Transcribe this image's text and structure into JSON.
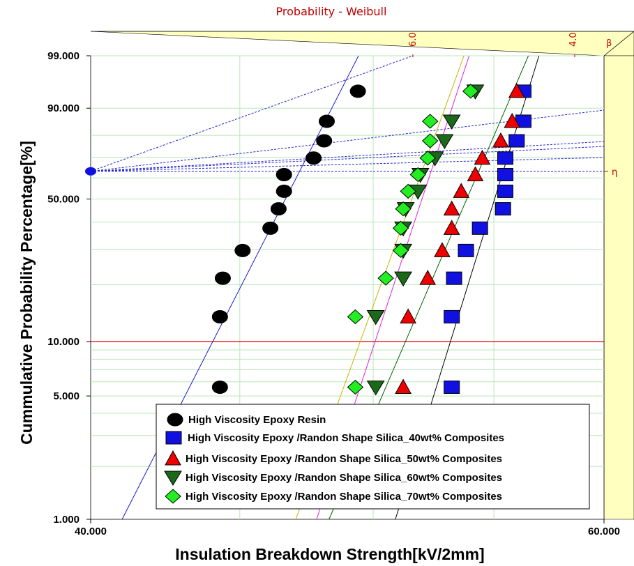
{
  "chart_data": {
    "type": "scatter",
    "title": "Probability - Weibull",
    "xlabel": "Insulation Breakdown Strength[kV/2mm]",
    "ylabel": "Cummulative Probability Percentage[%]",
    "xlim": [
      40.0,
      60.0
    ],
    "ylim": [
      1.0,
      99.0
    ],
    "x_scale": "log",
    "y_scale": "weibull",
    "x_tick_labels": [
      "40.000",
      "60.000"
    ],
    "y_tick_labels": [
      "99.000",
      "90.000",
      "50.000",
      "10.000",
      "5.000",
      "1.000"
    ],
    "y_ticks": [
      99.0,
      90.0,
      50.0,
      10.0,
      5.0,
      1.0
    ],
    "beta_scale_labels": [
      "6.0",
      "4.0",
      "β"
    ],
    "eta_label": "η",
    "grid": true,
    "legend_placement": "bottom-center",
    "colors": {
      "plot_bg": "#ffffff",
      "frame_bg": "#ffffc0",
      "grid": "#b8e8b8",
      "ref_line": "#e00000",
      "beta_lines": "#2222cc",
      "title": "#c00000"
    },
    "series": [
      {
        "name": "High Viscosity Epoxy Resin",
        "marker": "circle",
        "color": "#000000",
        "fit_color": "#1a1acc",
        "x": [
          44.3,
          44.3,
          44.4,
          45.1,
          46.1,
          46.4,
          46.6,
          46.6,
          47.7,
          48.1,
          48.2,
          49.4
        ],
        "y": [
          5.6,
          13.6,
          21.6,
          29.6,
          37.6,
          45.6,
          53.6,
          61.6,
          69.6,
          77.6,
          85.6,
          94.4
        ]
      },
      {
        "name": "High Viscosity Epoxy /Randon Shape Silica_40wt% Composites",
        "marker": "square",
        "color": "#1010e0",
        "fit_color": "#000000",
        "x": [
          53.2,
          53.2,
          53.3,
          53.8,
          54.4,
          55.4,
          55.5,
          55.5,
          55.5,
          56.0,
          56.3,
          56.3
        ],
        "y": [
          5.6,
          13.6,
          21.6,
          29.6,
          37.6,
          45.6,
          53.6,
          61.6,
          69.6,
          77.6,
          85.6,
          94.4
        ]
      },
      {
        "name": "High Viscosity Epoxy /Randon Shape Silica_50wt% Composites",
        "marker": "triangle-up",
        "color": "#ee0000",
        "fit_color": "#006000",
        "x": [
          51.2,
          51.4,
          52.2,
          52.8,
          53.2,
          53.2,
          53.6,
          54.2,
          54.5,
          55.3,
          55.8,
          56.0
        ],
        "y": [
          5.6,
          13.6,
          21.6,
          29.6,
          37.6,
          45.6,
          53.6,
          61.6,
          69.6,
          77.6,
          85.6,
          94.4
        ]
      },
      {
        "name": "High Viscosity Epoxy /Randon Shape Silica_60wt% Composites",
        "marker": "triangle-down",
        "color": "#1a6a1a",
        "fit_color": "#e020e0",
        "x": [
          50.1,
          50.1,
          51.2,
          51.2,
          51.2,
          51.3,
          51.8,
          51.9,
          52.5,
          52.9,
          53.2,
          54.2
        ],
        "y": [
          5.6,
          13.6,
          21.6,
          29.6,
          37.6,
          45.6,
          53.6,
          61.6,
          69.6,
          77.6,
          85.6,
          94.4
        ]
      },
      {
        "name": "High Viscosity Epoxy /Randon Shape Silica_70wt% Composites",
        "marker": "diamond",
        "color": "#22ee22",
        "fit_color": "#c8b400",
        "x": [
          49.3,
          49.3,
          50.5,
          51.1,
          51.1,
          51.2,
          51.4,
          51.8,
          52.2,
          52.3,
          52.3,
          54.0
        ],
        "y": [
          5.6,
          13.6,
          21.6,
          29.6,
          37.6,
          45.6,
          53.6,
          61.6,
          69.6,
          77.6,
          85.6,
          94.4
        ]
      }
    ]
  }
}
